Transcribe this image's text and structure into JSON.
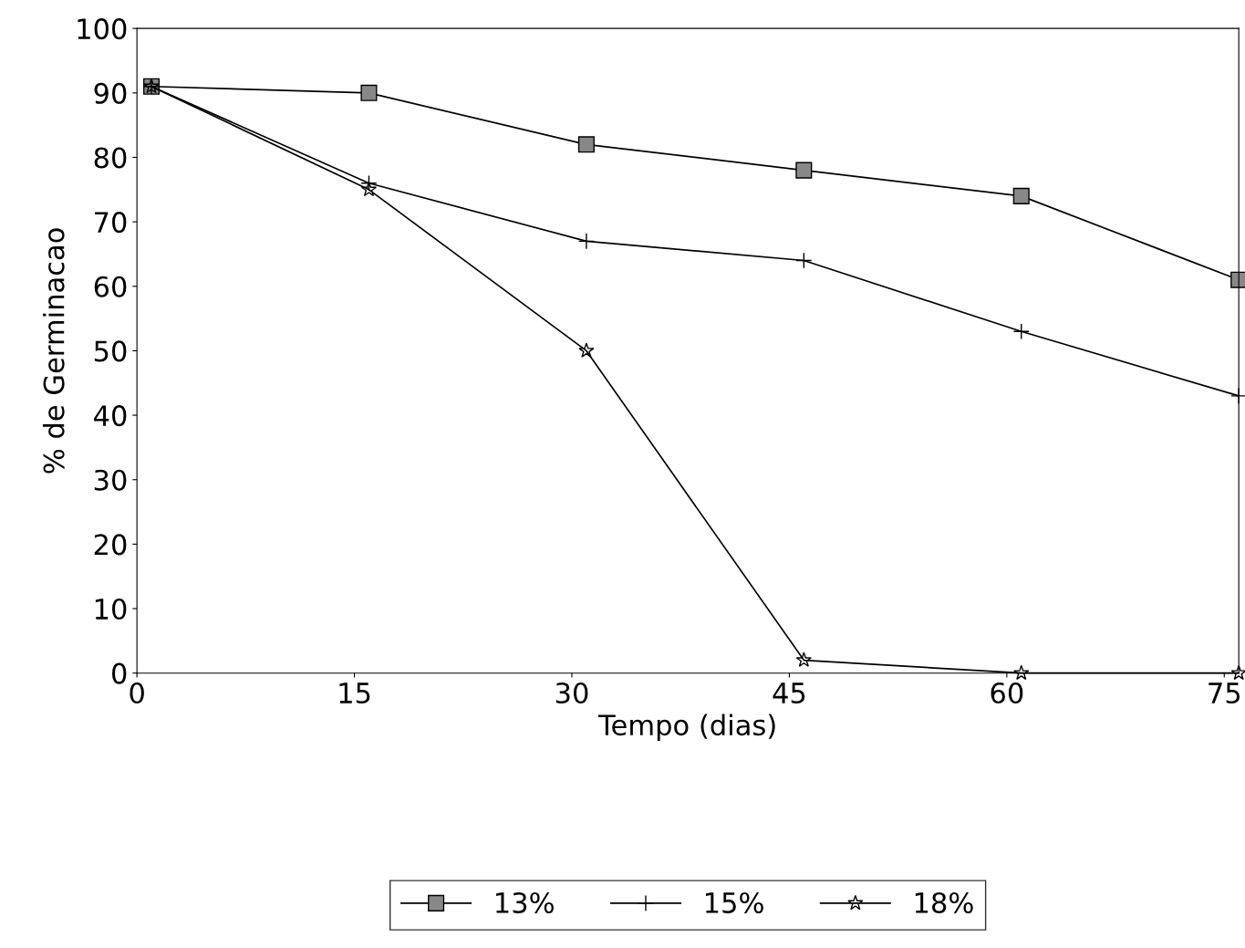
{
  "chart_data": {
    "type": "line",
    "xlabel": "Tempo (dias)",
    "ylabel": "% de Germinacao",
    "xlim": [
      0,
      76
    ],
    "xticks": [
      0,
      15,
      30,
      45,
      60,
      75
    ],
    "ylim": [
      0,
      100
    ],
    "yticks": [
      0,
      10,
      20,
      30,
      40,
      50,
      60,
      70,
      80,
      90,
      100
    ],
    "grid": false,
    "legend": "bottom",
    "line_style": "solid",
    "series": [
      {
        "name": "13%",
        "color": "#000000",
        "marker": "square",
        "x": [
          1,
          16,
          31,
          46,
          61,
          76
        ],
        "values": [
          91,
          90,
          82,
          78,
          74,
          61
        ]
      },
      {
        "name": "15%",
        "color": "#000000",
        "marker": "cross",
        "x": [
          1,
          16,
          31,
          46,
          61,
          76
        ],
        "values": [
          91,
          76,
          67,
          64,
          53,
          43
        ]
      },
      {
        "name": "18%",
        "color": "#000000",
        "marker": "star",
        "x": [
          1,
          16,
          31,
          46,
          61,
          76
        ],
        "values": [
          91,
          75,
          50,
          2,
          0,
          0
        ]
      }
    ]
  }
}
